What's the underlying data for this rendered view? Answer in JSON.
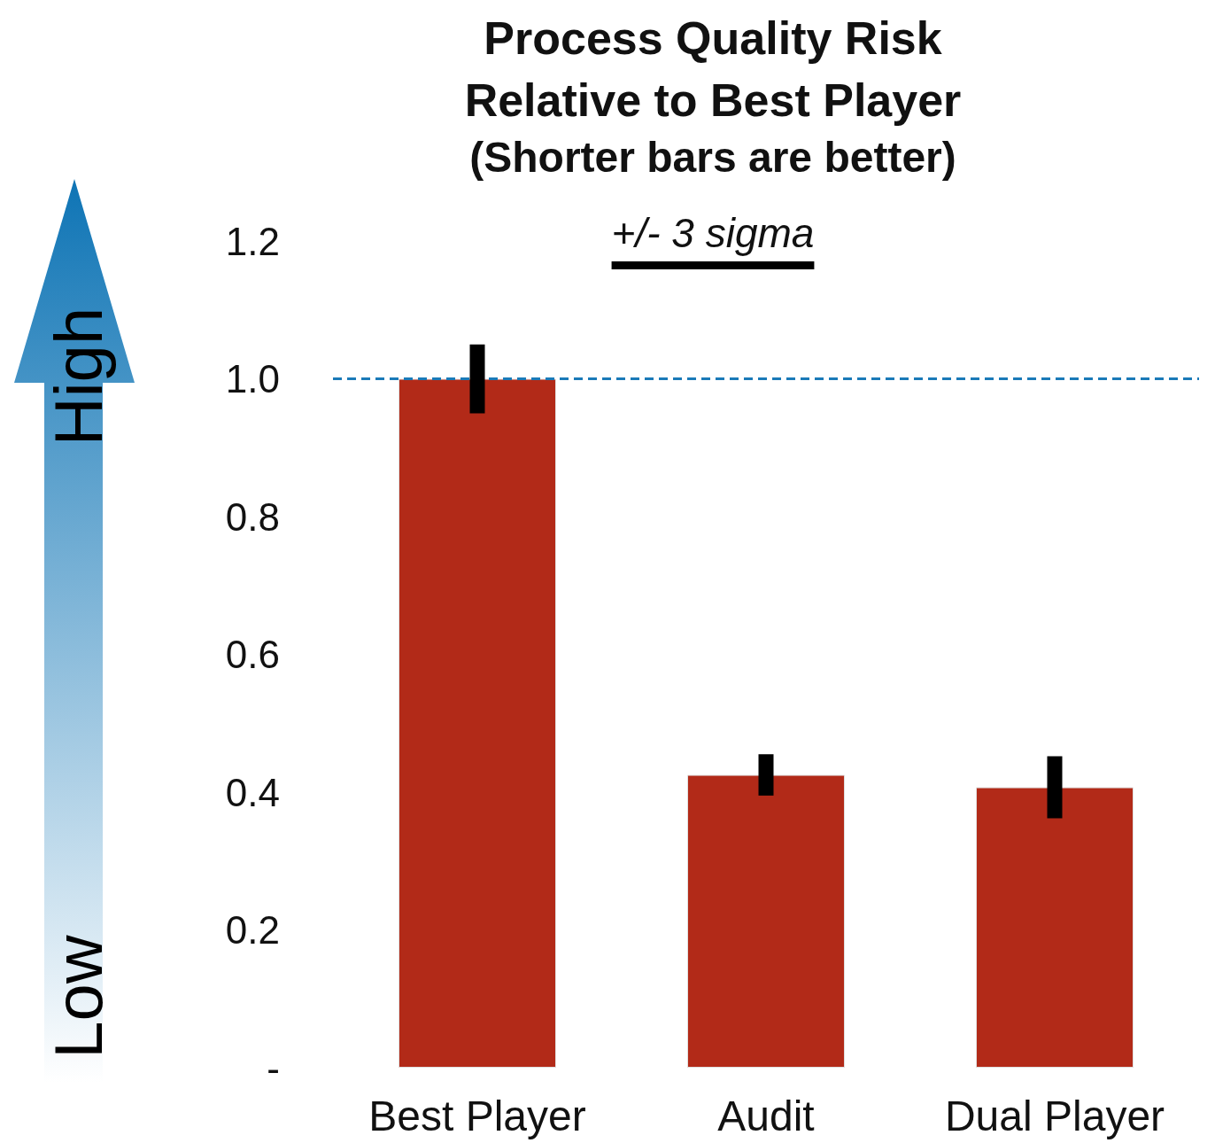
{
  "chart_data": {
    "type": "bar",
    "title": "Process Quality Risk Relative to Best Player",
    "subtitle": "(Shorter bars are better)",
    "categories": [
      "Best Player",
      "Audit",
      "Dual Player"
    ],
    "values": [
      1.0,
      0.425,
      0.407
    ],
    "errors": [
      0.05,
      0.03,
      0.045
    ],
    "color": "#b22a18",
    "ylim": [
      0,
      1.2
    ],
    "yticks": [
      {
        "value": 0,
        "label": "-"
      },
      {
        "value": 0.2,
        "label": "0.2"
      },
      {
        "value": 0.4,
        "label": "0.4"
      },
      {
        "value": 0.6,
        "label": "0.6"
      },
      {
        "value": 0.8,
        "label": "0.8"
      },
      {
        "value": 1.0,
        "label": "1.0"
      },
      {
        "value": 1.2,
        "label": "1.2"
      }
    ],
    "ref_lines": [
      {
        "axis": "y",
        "value": 1.0,
        "color": "#1a7ab8",
        "line_style": "dashed"
      }
    ],
    "annotations": [
      "+/- 3 sigma",
      "High",
      "Low"
    ],
    "grid": false
  }
}
